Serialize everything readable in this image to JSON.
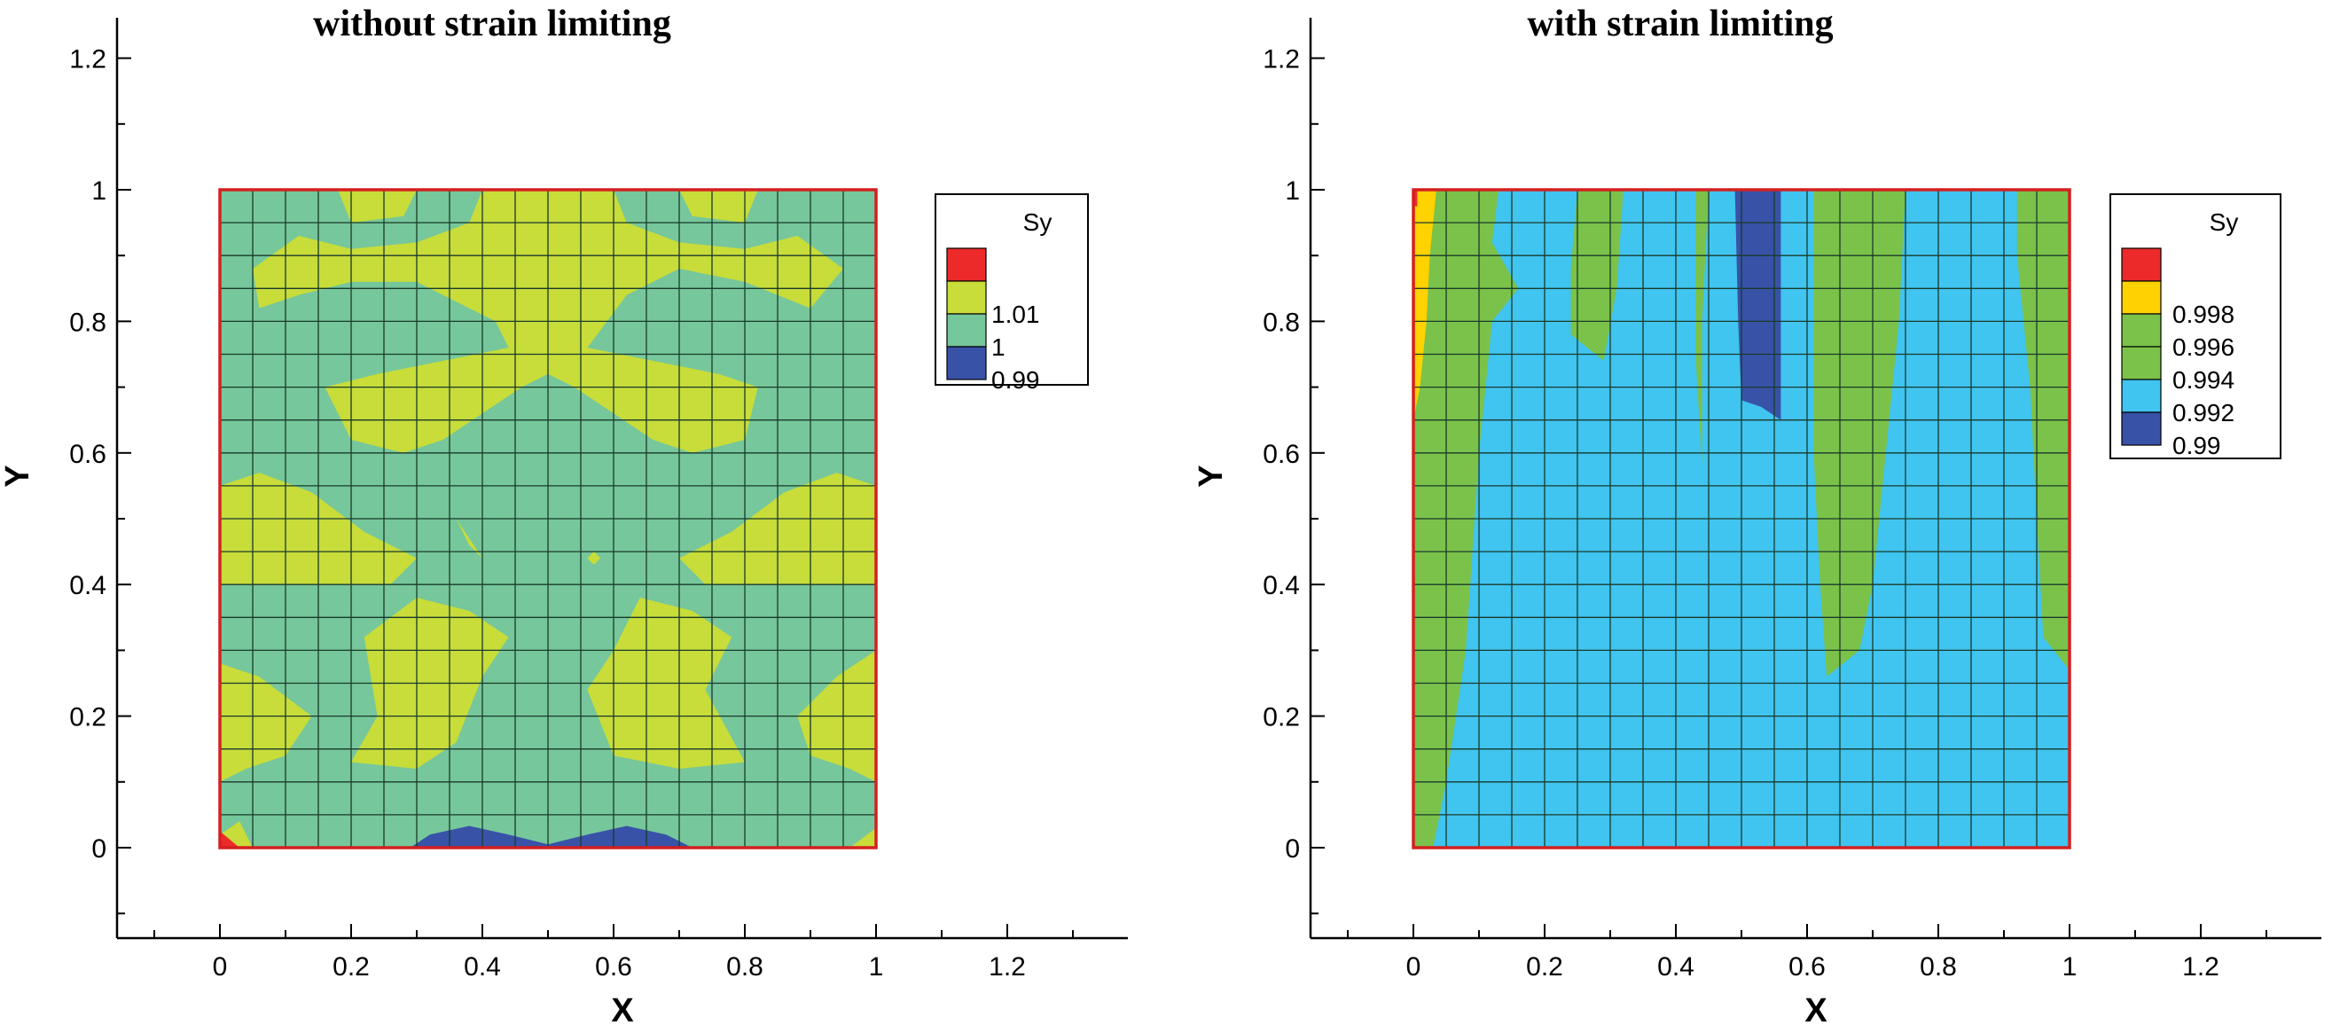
{
  "chart_data": [
    {
      "type": "contour",
      "title": "without strain limiting",
      "xlabel": "X",
      "ylabel": "Y",
      "xlim": [
        -0.16,
        1.38
      ],
      "ylim": [
        -0.14,
        1.26
      ],
      "xticks": [
        "0",
        "0.2",
        "0.4",
        "0.6",
        "0.8",
        "1",
        "1.2"
      ],
      "yticks": [
        "0",
        "0.2",
        "0.4",
        "0.6",
        "0.8",
        "1",
        "1.2"
      ],
      "domain": {
        "x": [
          0,
          1
        ],
        "y": [
          0,
          1
        ]
      },
      "mesh": {
        "nx": 20,
        "ny": 20
      },
      "colors": {
        "background": "#76c79b",
        "frame": "#d42020",
        "grid": "#1a3a2a"
      },
      "legend": {
        "title": "Sy",
        "position": "right",
        "entries": [
          {
            "label": "",
            "color": "#ec2a2a"
          },
          {
            "label": "1.01",
            "color": "#c8dc3a"
          },
          {
            "label": "1",
            "color": "#76c79b"
          },
          {
            "label": "0.99",
            "color": "#3852a8"
          }
        ]
      },
      "regions": [
        {
          "level": "1.01",
          "color": "#c8dc3a",
          "points": [
            [
              0.12,
              1
            ],
            [
              0.18,
              1
            ],
            [
              0.2,
              0.95
            ],
            [
              0.28,
              0.96
            ],
            [
              0.3,
              1
            ],
            [
              0.12,
              1
            ]
          ]
        },
        {
          "level": "1.01",
          "color": "#c8dc3a",
          "points": [
            [
              0.7,
              1
            ],
            [
              0.72,
              0.96
            ],
            [
              0.8,
              0.95
            ],
            [
              0.82,
              1
            ],
            [
              0.88,
              1
            ],
            [
              0.7,
              1
            ]
          ]
        },
        {
          "level": "1.01",
          "color": "#c8dc3a",
          "points": [
            [
              0.05,
              0.88
            ],
            [
              0.12,
              0.93
            ],
            [
              0.2,
              0.91
            ],
            [
              0.3,
              0.92
            ],
            [
              0.38,
              0.95
            ],
            [
              0.4,
              1
            ],
            [
              0.6,
              1
            ],
            [
              0.62,
              0.95
            ],
            [
              0.7,
              0.92
            ],
            [
              0.8,
              0.91
            ],
            [
              0.88,
              0.93
            ],
            [
              0.95,
              0.88
            ],
            [
              0.9,
              0.82
            ],
            [
              0.8,
              0.86
            ],
            [
              0.7,
              0.88
            ],
            [
              0.62,
              0.84
            ],
            [
              0.56,
              0.76
            ],
            [
              0.55,
              0.72
            ],
            [
              0.5,
              0.74
            ],
            [
              0.44,
              0.76
            ],
            [
              0.42,
              0.8
            ],
            [
              0.3,
              0.86
            ],
            [
              0.2,
              0.86
            ],
            [
              0.12,
              0.84
            ],
            [
              0.06,
              0.82
            ],
            [
              0.05,
              0.88
            ]
          ]
        },
        {
          "level": "1.01",
          "color": "#c8dc3a",
          "points": [
            [
              0.16,
              0.7
            ],
            [
              0.24,
              0.72
            ],
            [
              0.34,
              0.74
            ],
            [
              0.44,
              0.76
            ],
            [
              0.5,
              0.74
            ],
            [
              0.56,
              0.76
            ],
            [
              0.66,
              0.74
            ],
            [
              0.76,
              0.72
            ],
            [
              0.82,
              0.7
            ],
            [
              0.8,
              0.62
            ],
            [
              0.72,
              0.6
            ],
            [
              0.66,
              0.62
            ],
            [
              0.6,
              0.66
            ],
            [
              0.54,
              0.7
            ],
            [
              0.5,
              0.72
            ],
            [
              0.46,
              0.7
            ],
            [
              0.4,
              0.66
            ],
            [
              0.34,
              0.62
            ],
            [
              0.28,
              0.6
            ],
            [
              0.2,
              0.62
            ],
            [
              0.16,
              0.7
            ]
          ]
        },
        {
          "level": "1.01",
          "color": "#c8dc3a",
          "points": [
            [
              0,
              0.55
            ],
            [
              0.06,
              0.57
            ],
            [
              0.14,
              0.54
            ],
            [
              0.22,
              0.48
            ],
            [
              0.3,
              0.44
            ],
            [
              0.26,
              0.4
            ],
            [
              0.18,
              0.4
            ],
            [
              0.1,
              0.4
            ],
            [
              0,
              0.4
            ],
            [
              0,
              0.55
            ]
          ]
        },
        {
          "level": "1.01",
          "color": "#c8dc3a",
          "points": [
            [
              1,
              0.55
            ],
            [
              0.94,
              0.57
            ],
            [
              0.86,
              0.54
            ],
            [
              0.78,
              0.48
            ],
            [
              0.7,
              0.44
            ],
            [
              0.74,
              0.4
            ],
            [
              0.82,
              0.4
            ],
            [
              0.9,
              0.4
            ],
            [
              1,
              0.4
            ],
            [
              1,
              0.55
            ]
          ]
        },
        {
          "level": "1.01",
          "color": "#c8dc3a",
          "points": [
            [
              0,
              0.28
            ],
            [
              0.06,
              0.26
            ],
            [
              0.14,
              0.2
            ],
            [
              0.1,
              0.14
            ],
            [
              0.04,
              0.12
            ],
            [
              0,
              0.1
            ],
            [
              0,
              0.28
            ]
          ]
        },
        {
          "level": "1.01",
          "color": "#c8dc3a",
          "points": [
            [
              1,
              0.3
            ],
            [
              0.94,
              0.26
            ],
            [
              0.88,
              0.2
            ],
            [
              0.9,
              0.14
            ],
            [
              0.96,
              0.12
            ],
            [
              1,
              0.1
            ],
            [
              1,
              0.3
            ]
          ]
        },
        {
          "level": "1.01",
          "color": "#c8dc3a",
          "points": [
            [
              0.22,
              0.32
            ],
            [
              0.3,
              0.38
            ],
            [
              0.38,
              0.36
            ],
            [
              0.44,
              0.32
            ],
            [
              0.4,
              0.26
            ],
            [
              0.36,
              0.16
            ],
            [
              0.3,
              0.12
            ],
            [
              0.2,
              0.13
            ],
            [
              0.24,
              0.2
            ],
            [
              0.22,
              0.32
            ]
          ]
        },
        {
          "level": "1.01",
          "color": "#c8dc3a",
          "points": [
            [
              0.64,
              0.38
            ],
            [
              0.72,
              0.36
            ],
            [
              0.78,
              0.32
            ],
            [
              0.74,
              0.24
            ],
            [
              0.8,
              0.13
            ],
            [
              0.7,
              0.12
            ],
            [
              0.6,
              0.14
            ],
            [
              0.56,
              0.24
            ],
            [
              0.6,
              0.3
            ],
            [
              0.64,
              0.38
            ]
          ]
        },
        {
          "level": "1.01",
          "color": "#c8dc3a",
          "points": [
            [
              0.36,
              0.5
            ],
            [
              0.4,
              0.44
            ],
            [
              0.42,
              0.42
            ],
            [
              0.38,
              0.46
            ],
            [
              0.36,
              0.5
            ]
          ]
        },
        {
          "level": "1.01",
          "color": "#c8dc3a",
          "points": [
            [
              0.56,
              0.44
            ],
            [
              0.57,
              0.43
            ],
            [
              0.58,
              0.44
            ],
            [
              0.57,
              0.45
            ],
            [
              0.56,
              0.44
            ]
          ]
        },
        {
          "level": "1.01",
          "color": "#c8dc3a",
          "points": [
            [
              0,
              0.02
            ],
            [
              0.03,
              0.04
            ],
            [
              0.05,
              0
            ],
            [
              0,
              0
            ],
            [
              0,
              0.02
            ]
          ]
        },
        {
          "level": "1.01",
          "color": "#c8dc3a",
          "points": [
            [
              0.96,
              0
            ],
            [
              1,
              0
            ],
            [
              1,
              0.03
            ],
            [
              0.96,
              0
            ]
          ]
        },
        {
          "level": "1.01",
          "color": "#ec2a2a",
          "points": [
            [
              0,
              0
            ],
            [
              0,
              0.025
            ],
            [
              0.03,
              0
            ],
            [
              0,
              0
            ]
          ]
        },
        {
          "level": "0.99",
          "color": "#3852a8",
          "points": [
            [
              0.29,
              0
            ],
            [
              0.32,
              0.02
            ],
            [
              0.38,
              0.033
            ],
            [
              0.44,
              0.02
            ],
            [
              0.5,
              0.005
            ],
            [
              0.56,
              0.02
            ],
            [
              0.62,
              0.033
            ],
            [
              0.68,
              0.02
            ],
            [
              0.72,
              0
            ],
            [
              0.29,
              0
            ]
          ]
        }
      ]
    },
    {
      "type": "contour",
      "title": "with strain limiting",
      "xlabel": "X",
      "ylabel": "Y",
      "xlim": [
        -0.16,
        1.38
      ],
      "ylim": [
        -0.14,
        1.26
      ],
      "xticks": [
        "0",
        "0.2",
        "0.4",
        "0.6",
        "0.8",
        "1",
        "1.2"
      ],
      "yticks": [
        "0",
        "0.2",
        "0.4",
        "0.6",
        "0.8",
        "1",
        "1.2"
      ],
      "domain": {
        "x": [
          0,
          1
        ],
        "y": [
          0,
          1
        ]
      },
      "mesh": {
        "nx": 20,
        "ny": 20
      },
      "colors": {
        "background": "#40c4f0",
        "frame": "#d42020",
        "grid": "#1a3a2a"
      },
      "legend": {
        "title": "Sy",
        "position": "right",
        "entries": [
          {
            "label": "",
            "color": "#ec2a2a"
          },
          {
            "label": "0.998",
            "color": "#ffd200"
          },
          {
            "label": "0.996",
            "color": "#7bc24a"
          },
          {
            "label": "0.994",
            "color": "#7bc24a"
          },
          {
            "label": "0.992",
            "color": "#40c4f0"
          },
          {
            "label": "0.99",
            "color": "#3852a8"
          }
        ]
      },
      "regions": [
        {
          "level": "0.996",
          "color": "#7bc24a",
          "points": [
            [
              0,
              1
            ],
            [
              0.13,
              1
            ],
            [
              0.12,
              0.92
            ],
            [
              0.16,
              0.85
            ],
            [
              0.12,
              0.8
            ],
            [
              0.1,
              0.6
            ],
            [
              0.08,
              0.3
            ],
            [
              0.05,
              0.1
            ],
            [
              0.03,
              0
            ],
            [
              0,
              0
            ],
            [
              0,
              1
            ]
          ]
        },
        {
          "level": "0.998",
          "color": "#ffd200",
          "points": [
            [
              0,
              1
            ],
            [
              0.035,
              1
            ],
            [
              0.025,
              0.9
            ],
            [
              0.02,
              0.8
            ],
            [
              0.01,
              0.7
            ],
            [
              0,
              0.65
            ],
            [
              0,
              1
            ]
          ]
        },
        {
          "level": "0.998",
          "color": "#ec2a2a",
          "points": [
            [
              0,
              1
            ],
            [
              0.006,
              1
            ],
            [
              0.006,
              0.975
            ],
            [
              0,
              0.975
            ],
            [
              0,
              1
            ]
          ]
        },
        {
          "level": "0.996",
          "color": "#7bc24a",
          "points": [
            [
              0.25,
              1
            ],
            [
              0.32,
              1
            ],
            [
              0.31,
              0.85
            ],
            [
              0.29,
              0.74
            ],
            [
              0.24,
              0.78
            ],
            [
              0.24,
              0.88
            ],
            [
              0.25,
              1
            ]
          ]
        },
        {
          "level": "0.996",
          "color": "#7bc24a",
          "points": [
            [
              0.43,
              1
            ],
            [
              0.45,
              1
            ],
            [
              0.44,
              0.8
            ],
            [
              0.44,
              0.58
            ],
            [
              0.43,
              0.75
            ],
            [
              0.43,
              1
            ]
          ]
        },
        {
          "level": "0.996",
          "color": "#7bc24a",
          "points": [
            [
              0.61,
              1
            ],
            [
              0.75,
              1
            ],
            [
              0.74,
              0.8
            ],
            [
              0.72,
              0.6
            ],
            [
              0.7,
              0.4
            ],
            [
              0.68,
              0.3
            ],
            [
              0.63,
              0.26
            ],
            [
              0.62,
              0.4
            ],
            [
              0.61,
              0.6
            ],
            [
              0.61,
              1
            ]
          ]
        },
        {
          "level": "0.996",
          "color": "#7bc24a",
          "points": [
            [
              0.92,
              1
            ],
            [
              1,
              1
            ],
            [
              1,
              0.27
            ],
            [
              0.96,
              0.32
            ],
            [
              0.95,
              0.5
            ],
            [
              0.94,
              0.7
            ],
            [
              0.92,
              0.9
            ],
            [
              0.92,
              1
            ]
          ]
        },
        {
          "level": "0.99",
          "color": "#3852a8",
          "points": [
            [
              0.49,
              1
            ],
            [
              0.56,
              1
            ],
            [
              0.56,
              0.8
            ],
            [
              0.56,
              0.65
            ],
            [
              0.53,
              0.67
            ],
            [
              0.5,
              0.68
            ],
            [
              0.495,
              0.8
            ],
            [
              0.49,
              1
            ]
          ]
        }
      ]
    }
  ]
}
